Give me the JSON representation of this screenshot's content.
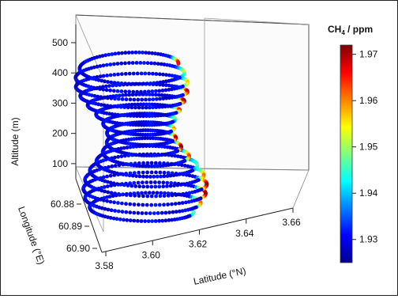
{
  "chart_data": {
    "type": "scatter",
    "subtype": "3d-spiral-flight-track",
    "grid": false,
    "legend_placement": "right",
    "x_axis": {
      "label": "Latitude (°N)",
      "ticks": [
        "3.58",
        "3.60",
        "3.62",
        "3.64",
        "3.66"
      ],
      "range": [
        3.58,
        3.66
      ]
    },
    "y_axis": {
      "label": "Longitude (°E)",
      "ticks": [
        "60.88",
        "60.89",
        "60.90"
      ],
      "range": [
        60.875,
        60.905
      ]
    },
    "z_axis": {
      "label": "Altitude (m)",
      "ticks": [
        "100",
        "200",
        "300",
        "400",
        "500"
      ],
      "range": [
        50,
        560
      ]
    },
    "color_axis": {
      "label_main": "CH",
      "label_sub": "4",
      "label_unit": " / ppm",
      "ticks": [
        "1.97",
        "1.96",
        "1.95",
        "1.94",
        "1.93"
      ],
      "range": [
        1.925,
        1.972
      ],
      "colormap": [
        "#00008f",
        "#0000ff",
        "#007fff",
        "#00ffff",
        "#7fff7f",
        "#ffff00",
        "#ff7f00",
        "#ff0000",
        "#7f0000"
      ]
    },
    "series": [
      {
        "turns": 16,
        "altitude_range": [
          50,
          540
        ],
        "latitude_center": 3.605,
        "longitude_center": 60.89,
        "typical_ch4": 1.93,
        "peak_ch4": 1.97
      }
    ]
  }
}
